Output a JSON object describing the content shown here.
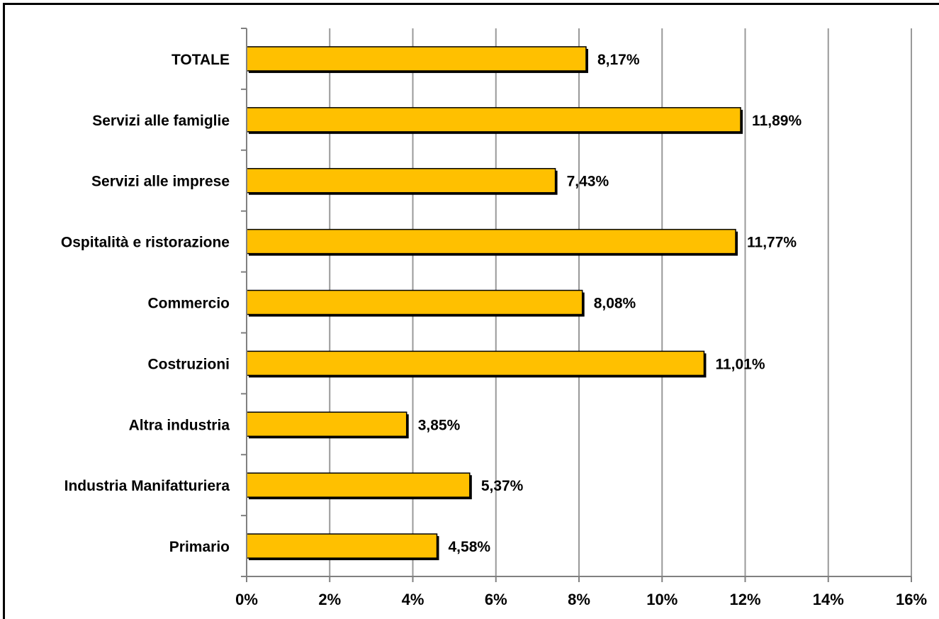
{
  "chart_data": {
    "type": "bar",
    "orientation": "horizontal",
    "categories": [
      "TOTALE",
      "Servizi alle famiglie",
      "Servizi alle imprese",
      "Ospitalità e ristorazione",
      "Commercio",
      "Costruzioni",
      "Altra industria",
      "Industria Manifatturiera",
      "Primario"
    ],
    "values": [
      8.17,
      11.89,
      7.43,
      11.77,
      8.08,
      11.01,
      3.85,
      5.37,
      4.58
    ],
    "value_labels": [
      "8,17%",
      "11,89%",
      "7,43%",
      "11,77%",
      "8,08%",
      "11,01%",
      "3,85%",
      "5,37%",
      "4,58%"
    ],
    "x_ticks": [
      "0%",
      "2%",
      "4%",
      "6%",
      "8%",
      "10%",
      "12%",
      "14%",
      "16%"
    ],
    "xlim": [
      0,
      16
    ],
    "grid": true,
    "title": "",
    "xlabel": "",
    "ylabel": "",
    "colors": {
      "bar": "#FFC000",
      "bar_stroke": "#000000",
      "grid": "#999999",
      "axis": "#808080"
    }
  }
}
